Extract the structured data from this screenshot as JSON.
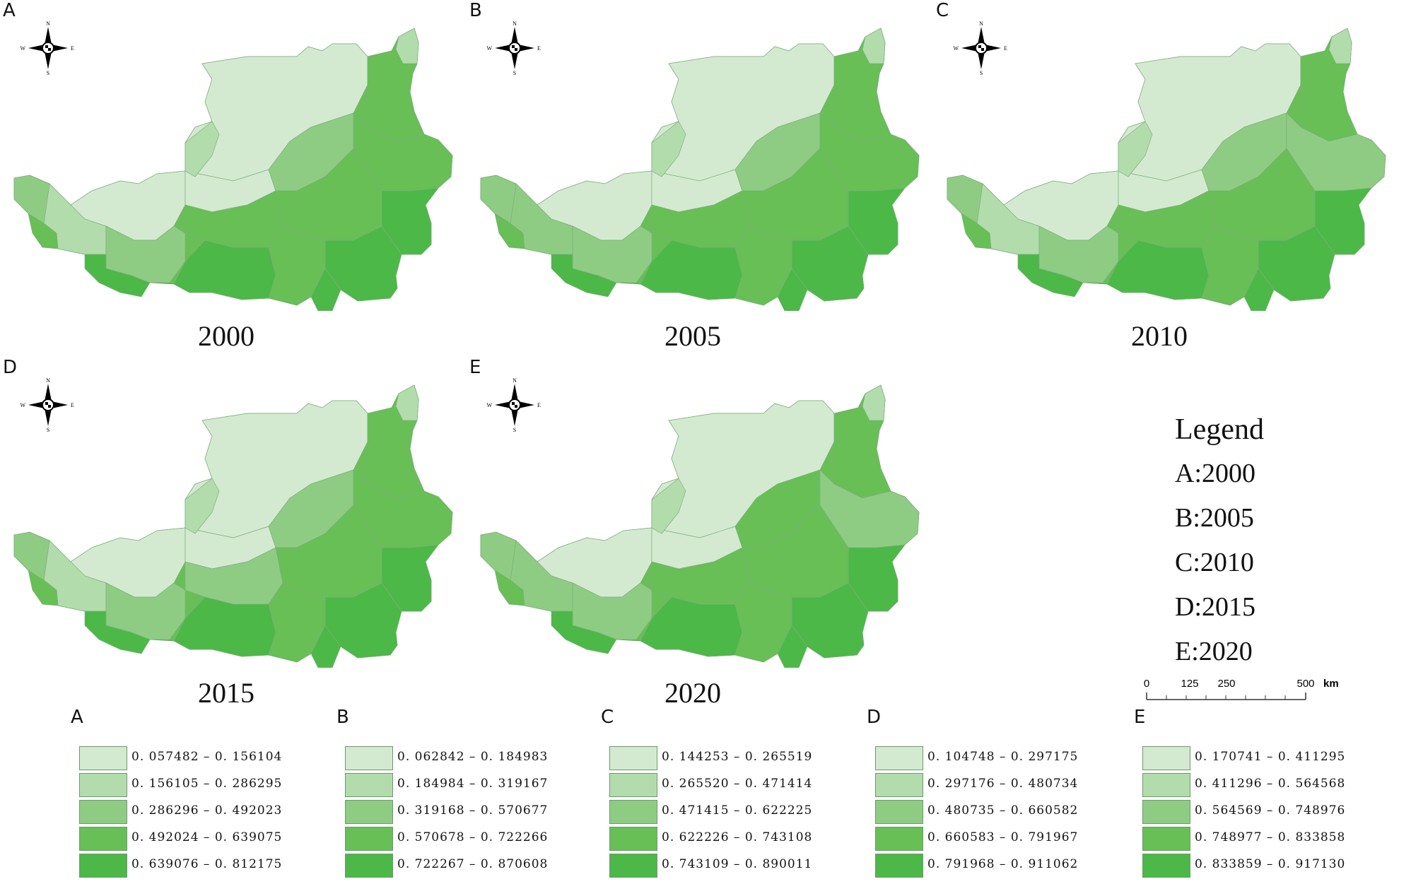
{
  "panels": [
    {
      "letter": "A",
      "year": "2000",
      "pattern": [
        0,
        0,
        0,
        1,
        1,
        2,
        3,
        3,
        1,
        3,
        2,
        3,
        4,
        4,
        3,
        4,
        2,
        3,
        4,
        4
      ]
    },
    {
      "letter": "B",
      "year": "2005",
      "pattern": [
        0,
        0,
        0,
        2,
        1,
        2,
        3,
        3,
        1,
        3,
        2,
        3,
        4,
        4,
        3,
        4,
        2,
        3,
        4,
        4
      ]
    },
    {
      "letter": "C",
      "year": "2010",
      "pattern": [
        0,
        0,
        0,
        1,
        1,
        2,
        3,
        2,
        1,
        3,
        2,
        3,
        4,
        4,
        3,
        4,
        2,
        3,
        4,
        4
      ]
    },
    {
      "letter": "D",
      "year": "2015",
      "pattern": [
        0,
        0,
        0,
        1,
        1,
        2,
        3,
        3,
        1,
        2,
        2,
        3,
        4,
        4,
        3,
        4,
        2,
        3,
        4,
        4
      ]
    },
    {
      "letter": "E",
      "year": "2020",
      "pattern": [
        0,
        0,
        0,
        2,
        1,
        3,
        3,
        2,
        1,
        3,
        2,
        3,
        4,
        4,
        3,
        4,
        2,
        3,
        4,
        4
      ]
    }
  ],
  "compass_labels": {
    "n": "N",
    "s": "S",
    "w": "W",
    "e": "E"
  },
  "legend": {
    "title": "Legend",
    "years": [
      "A:2000",
      "B:2005",
      "C:2010",
      "D:2015",
      "E:2020"
    ]
  },
  "scale_bar": {
    "ticks": [
      "0",
      "125",
      "250",
      "500"
    ],
    "unit": "km"
  },
  "class_colors": [
    "#d3ead0",
    "#b3dcad",
    "#8ecc83",
    "#67bf56",
    "#4cb847"
  ],
  "class_breaks": [
    {
      "letter": "A",
      "ranges": [
        "0. 057482 – 0. 156104",
        "0. 156105 – 0. 286295",
        "0. 286296 – 0. 492023",
        "0. 492024 – 0. 639075",
        "0. 639076 – 0. 812175"
      ]
    },
    {
      "letter": "B",
      "ranges": [
        "0. 062842 – 0. 184983",
        "0. 184984 – 0. 319167",
        "0. 319168 – 0. 570677",
        "0. 570678 – 0. 722266",
        "0. 722267 – 0. 870608"
      ]
    },
    {
      "letter": "C",
      "ranges": [
        "0. 144253 – 0. 265519",
        "0. 265520 – 0. 471414",
        "0. 471415 – 0. 622225",
        "0. 622226 – 0. 743108",
        "0. 743109 – 0. 890011"
      ]
    },
    {
      "letter": "D",
      "ranges": [
        "0. 104748 – 0. 297175",
        "0. 297176 – 0. 480734",
        "0. 480735 – 0. 660582",
        "0. 660583 – 0. 791967",
        "0. 791968 – 0. 911062"
      ]
    },
    {
      "letter": "E",
      "ranges": [
        "0. 170741 – 0. 411295",
        "0. 411296 – 0. 564568",
        "0. 564569 – 0. 748976",
        "0. 748977 – 0. 833858",
        "0. 833859 – 0. 917130"
      ]
    }
  ]
}
